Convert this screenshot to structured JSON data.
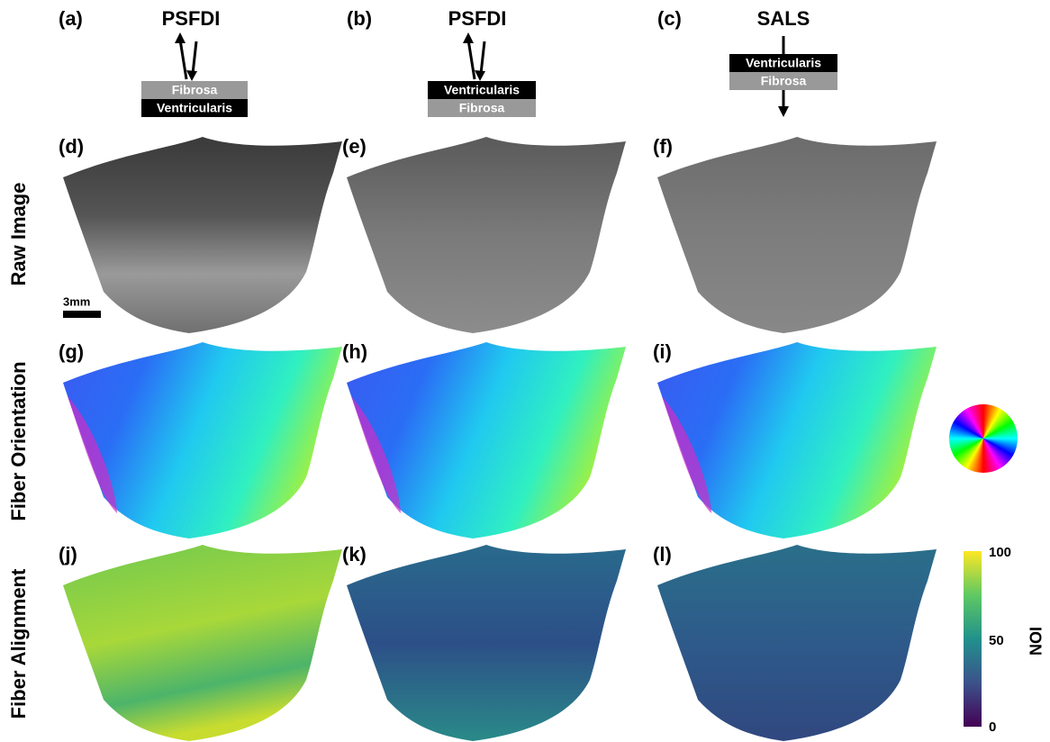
{
  "panel_labels": [
    "(a)",
    "(b)",
    "(c)",
    "(d)",
    "(e)",
    "(f)",
    "(g)",
    "(h)",
    "(i)",
    "(j)",
    "(k)",
    "(l)"
  ],
  "headers": [
    {
      "method": "PSFDI",
      "layers": [
        "Fibrosa",
        "Ventricularis"
      ]
    },
    {
      "method": "PSFDI",
      "layers": [
        "Ventricularis",
        "Fibrosa"
      ]
    },
    {
      "method": "SALS",
      "layers": [
        "Ventricularis",
        "Fibrosa"
      ]
    }
  ],
  "row_labels": [
    "Raw Image",
    "Fiber Orientation",
    "Fiber Alignment"
  ],
  "scale_bar": "3mm",
  "colorbar": {
    "label": "ION",
    "ticks": [
      "100",
      "50",
      "0"
    ]
  }
}
